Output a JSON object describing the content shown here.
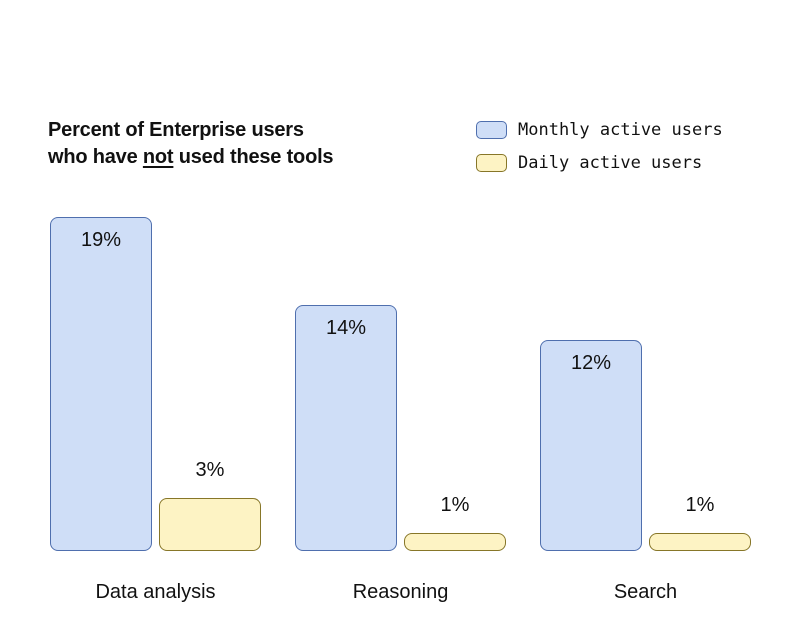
{
  "page": {
    "background": "#ffffff"
  },
  "title": {
    "line1": "Percent of Enterprise users",
    "line2_pre": "who have ",
    "line2_underlined": "not",
    "line2_post": " used these tools"
  },
  "chart_data": {
    "type": "bar",
    "title": "Percent of Enterprise users who have not used these tools",
    "categories": [
      "Data analysis",
      "Reasoning",
      "Search"
    ],
    "series": [
      {
        "name": "Monthly active users",
        "values": [
          19,
          14,
          12
        ],
        "value_labels": [
          "19%",
          "14%",
          "12%"
        ],
        "fill": "#cfdef7",
        "stroke": "#4f6fae",
        "label_placement": "inside-top"
      },
      {
        "name": "Daily active users",
        "values": [
          3,
          1,
          1
        ],
        "value_labels": [
          "3%",
          "1%",
          "1%"
        ],
        "fill": "#fdf3c4",
        "stroke": "#877628",
        "label_placement": "above"
      }
    ],
    "unit": "%",
    "xlabel": "",
    "ylabel": "",
    "ylim": [
      0,
      20
    ],
    "grid": false,
    "axes_visible": false,
    "legend_position": "top-right",
    "text_color": "#111111"
  }
}
